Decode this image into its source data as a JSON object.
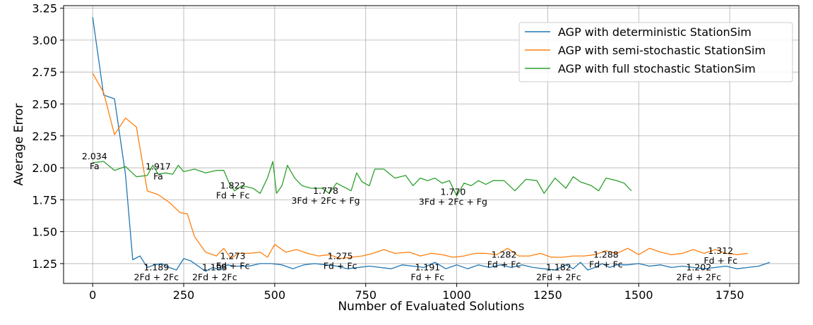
{
  "chart_data": {
    "type": "line",
    "xlabel": "Number of Evaluated Solutions",
    "ylabel": "Average Error",
    "xlim": [
      -80,
      1940
    ],
    "ylim": [
      1.095,
      3.27
    ],
    "x_ticks": [
      0,
      250,
      500,
      750,
      1000,
      1250,
      1500,
      1750
    ],
    "y_ticks": [
      1.25,
      1.5,
      1.75,
      2.0,
      2.25,
      2.5,
      2.75,
      3.0,
      3.25
    ],
    "x_tick_labels": [
      "0",
      "250",
      "500",
      "750",
      "1000",
      "1250",
      "1500",
      "1750"
    ],
    "y_tick_labels": [
      "1.25",
      "1.50",
      "1.75",
      "2.00",
      "2.25",
      "2.50",
      "2.75",
      "3.00",
      "3.25"
    ],
    "grid": true,
    "legend_position": "top-right",
    "series": [
      {
        "name": "AGP with deterministic StationSim",
        "color": "#1f77b4",
        "points": [
          [
            0,
            3.18
          ],
          [
            30,
            2.57
          ],
          [
            60,
            2.54
          ],
          [
            90,
            1.95
          ],
          [
            110,
            1.28
          ],
          [
            130,
            1.31
          ],
          [
            150,
            1.22
          ],
          [
            170,
            1.24
          ],
          [
            190,
            1.25
          ],
          [
            210,
            1.22
          ],
          [
            230,
            1.2
          ],
          [
            250,
            1.29
          ],
          [
            270,
            1.27
          ],
          [
            290,
            1.23
          ],
          [
            310,
            1.19
          ],
          [
            330,
            1.22
          ],
          [
            350,
            1.2
          ],
          [
            370,
            1.24
          ],
          [
            390,
            1.23
          ],
          [
            410,
            1.23
          ],
          [
            430,
            1.23
          ],
          [
            460,
            1.25
          ],
          [
            490,
            1.25
          ],
          [
            520,
            1.24
          ],
          [
            550,
            1.21
          ],
          [
            580,
            1.24
          ],
          [
            610,
            1.25
          ],
          [
            640,
            1.24
          ],
          [
            670,
            1.23
          ],
          [
            700,
            1.21
          ],
          [
            730,
            1.22
          ],
          [
            760,
            1.23
          ],
          [
            790,
            1.22
          ],
          [
            820,
            1.21
          ],
          [
            850,
            1.24
          ],
          [
            880,
            1.23
          ],
          [
            910,
            1.22
          ],
          [
            940,
            1.26
          ],
          [
            970,
            1.21
          ],
          [
            1000,
            1.24
          ],
          [
            1030,
            1.21
          ],
          [
            1060,
            1.24
          ],
          [
            1090,
            1.22
          ],
          [
            1120,
            1.24
          ],
          [
            1150,
            1.22
          ],
          [
            1180,
            1.24
          ],
          [
            1210,
            1.22
          ],
          [
            1240,
            1.21
          ],
          [
            1270,
            1.2
          ],
          [
            1300,
            1.24
          ],
          [
            1320,
            1.21
          ],
          [
            1340,
            1.26
          ],
          [
            1360,
            1.2
          ],
          [
            1380,
            1.22
          ],
          [
            1400,
            1.25
          ],
          [
            1420,
            1.22
          ],
          [
            1440,
            1.24
          ],
          [
            1470,
            1.24
          ],
          [
            1500,
            1.25
          ],
          [
            1530,
            1.23
          ],
          [
            1560,
            1.24
          ],
          [
            1590,
            1.22
          ],
          [
            1620,
            1.23
          ],
          [
            1650,
            1.22
          ],
          [
            1680,
            1.21
          ],
          [
            1710,
            1.22
          ],
          [
            1740,
            1.23
          ],
          [
            1770,
            1.21
          ],
          [
            1800,
            1.22
          ],
          [
            1830,
            1.23
          ],
          [
            1860,
            1.26
          ]
        ]
      },
      {
        "name": "AGP with semi-stochastic StationSim",
        "color": "#ff7f0e",
        "points": [
          [
            0,
            2.74
          ],
          [
            30,
            2.59
          ],
          [
            60,
            2.26
          ],
          [
            90,
            2.39
          ],
          [
            120,
            2.32
          ],
          [
            150,
            1.82
          ],
          [
            180,
            1.79
          ],
          [
            210,
            1.73
          ],
          [
            240,
            1.65
          ],
          [
            260,
            1.64
          ],
          [
            280,
            1.46
          ],
          [
            310,
            1.34
          ],
          [
            340,
            1.31
          ],
          [
            360,
            1.37
          ],
          [
            380,
            1.29
          ],
          [
            400,
            1.33
          ],
          [
            430,
            1.33
          ],
          [
            460,
            1.34
          ],
          [
            480,
            1.3
          ],
          [
            500,
            1.4
          ],
          [
            530,
            1.34
          ],
          [
            560,
            1.36
          ],
          [
            590,
            1.33
          ],
          [
            620,
            1.31
          ],
          [
            650,
            1.32
          ],
          [
            680,
            1.29
          ],
          [
            710,
            1.3
          ],
          [
            740,
            1.31
          ],
          [
            770,
            1.33
          ],
          [
            800,
            1.36
          ],
          [
            830,
            1.33
          ],
          [
            870,
            1.34
          ],
          [
            900,
            1.31
          ],
          [
            930,
            1.33
          ],
          [
            960,
            1.32
          ],
          [
            990,
            1.3
          ],
          [
            1020,
            1.31
          ],
          [
            1050,
            1.33
          ],
          [
            1080,
            1.33
          ],
          [
            1110,
            1.32
          ],
          [
            1140,
            1.37
          ],
          [
            1170,
            1.31
          ],
          [
            1200,
            1.31
          ],
          [
            1230,
            1.33
          ],
          [
            1260,
            1.3
          ],
          [
            1290,
            1.3
          ],
          [
            1320,
            1.31
          ],
          [
            1350,
            1.31
          ],
          [
            1380,
            1.32
          ],
          [
            1410,
            1.35
          ],
          [
            1440,
            1.33
          ],
          [
            1470,
            1.37
          ],
          [
            1500,
            1.32
          ],
          [
            1530,
            1.37
          ],
          [
            1560,
            1.34
          ],
          [
            1590,
            1.32
          ],
          [
            1620,
            1.33
          ],
          [
            1650,
            1.36
          ],
          [
            1680,
            1.33
          ],
          [
            1710,
            1.36
          ],
          [
            1740,
            1.33
          ],
          [
            1770,
            1.32
          ],
          [
            1800,
            1.33
          ]
        ]
      },
      {
        "name": "AGP with full stochastic StationSim",
        "color": "#2ca02c",
        "points": [
          [
            0,
            2.04
          ],
          [
            30,
            2.05
          ],
          [
            60,
            1.98
          ],
          [
            90,
            2.01
          ],
          [
            120,
            1.93
          ],
          [
            150,
            1.94
          ],
          [
            165,
            2.02
          ],
          [
            180,
            1.95
          ],
          [
            200,
            1.96
          ],
          [
            220,
            1.95
          ],
          [
            235,
            2.02
          ],
          [
            250,
            1.97
          ],
          [
            280,
            1.99
          ],
          [
            310,
            1.96
          ],
          [
            340,
            1.98
          ],
          [
            360,
            1.98
          ],
          [
            375,
            1.88
          ],
          [
            390,
            1.82
          ],
          [
            410,
            1.86
          ],
          [
            440,
            1.84
          ],
          [
            460,
            1.8
          ],
          [
            480,
            1.92
          ],
          [
            495,
            2.05
          ],
          [
            505,
            1.8
          ],
          [
            520,
            1.86
          ],
          [
            535,
            2.02
          ],
          [
            555,
            1.92
          ],
          [
            575,
            1.86
          ],
          [
            600,
            1.84
          ],
          [
            630,
            1.84
          ],
          [
            650,
            1.8
          ],
          [
            670,
            1.88
          ],
          [
            690,
            1.85
          ],
          [
            710,
            1.82
          ],
          [
            725,
            1.96
          ],
          [
            740,
            1.89
          ],
          [
            760,
            1.86
          ],
          [
            775,
            1.99
          ],
          [
            800,
            1.99
          ],
          [
            830,
            1.92
          ],
          [
            860,
            1.94
          ],
          [
            880,
            1.86
          ],
          [
            900,
            1.92
          ],
          [
            920,
            1.9
          ],
          [
            940,
            1.92
          ],
          [
            960,
            1.88
          ],
          [
            980,
            1.9
          ],
          [
            1000,
            1.78
          ],
          [
            1020,
            1.88
          ],
          [
            1040,
            1.86
          ],
          [
            1060,
            1.9
          ],
          [
            1080,
            1.87
          ],
          [
            1100,
            1.9
          ],
          [
            1130,
            1.9
          ],
          [
            1160,
            1.82
          ],
          [
            1190,
            1.91
          ],
          [
            1220,
            1.9
          ],
          [
            1240,
            1.8
          ],
          [
            1270,
            1.92
          ],
          [
            1300,
            1.84
          ],
          [
            1320,
            1.93
          ],
          [
            1340,
            1.89
          ],
          [
            1370,
            1.86
          ],
          [
            1390,
            1.82
          ],
          [
            1410,
            1.92
          ],
          [
            1440,
            1.9
          ],
          [
            1460,
            1.88
          ],
          [
            1480,
            1.82
          ]
        ]
      }
    ],
    "annotations": [
      {
        "x": 5,
        "y": 2.05,
        "value": "2.034",
        "formula": "Fa"
      },
      {
        "x": 180,
        "y": 1.97,
        "value": "1.917",
        "formula": "Fa"
      },
      {
        "x": 385,
        "y": 1.82,
        "value": "1.822",
        "formula": "Fd + Fc"
      },
      {
        "x": 640,
        "y": 1.78,
        "value": "1.778",
        "formula": "3Fd + 2Fc + Fg"
      },
      {
        "x": 990,
        "y": 1.77,
        "value": "1.770",
        "formula": "3Fd + 2Fc + Fg"
      },
      {
        "x": 385,
        "y": 1.27,
        "value": "1.273",
        "formula": "Fd + Fc"
      },
      {
        "x": 680,
        "y": 1.27,
        "value": "1.275",
        "formula": "Fd + Fc"
      },
      {
        "x": 1130,
        "y": 1.28,
        "value": "1.282",
        "formula": "Fd + Fc"
      },
      {
        "x": 1410,
        "y": 1.28,
        "value": "1.288",
        "formula": "Fd + Fc"
      },
      {
        "x": 1725,
        "y": 1.31,
        "value": "1.312",
        "formula": "Fd + Fc"
      },
      {
        "x": 175,
        "y": 1.18,
        "value": "1.189",
        "formula": "2Fd + 2Fc"
      },
      {
        "x": 335,
        "y": 1.18,
        "value": "1.195",
        "formula": "2Fd + 2Fc"
      },
      {
        "x": 920,
        "y": 1.18,
        "value": "1.191",
        "formula": "Fd + Fc"
      },
      {
        "x": 1280,
        "y": 1.18,
        "value": "1.182",
        "formula": "2Fd + 2Fc"
      },
      {
        "x": 1665,
        "y": 1.18,
        "value": "1.202",
        "formula": "2Fd + 2Fc"
      }
    ]
  }
}
